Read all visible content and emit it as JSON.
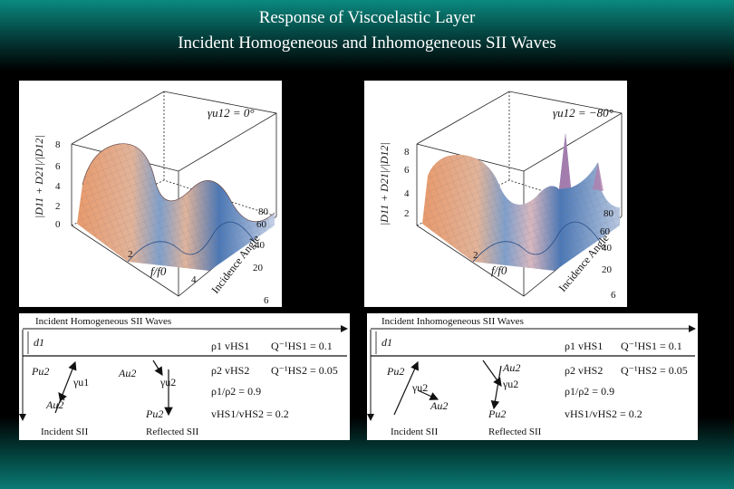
{
  "slide": {
    "title_line1": "Response of Viscoelastic Layer",
    "title_line2": "Incident Homogeneous and Inhomogeneous SII Waves"
  },
  "plots": [
    {
      "gamma_label": "γu12 = 0°",
      "ylabel": "|D11 + D21|/|D12|",
      "xlabel": "f/f0",
      "depth_label": "Incidence Angle",
      "z_ticks": [
        "0",
        "2",
        "4",
        "6",
        "8"
      ],
      "f_ticks": [
        "6",
        "4",
        "2"
      ],
      "angle_ticks": [
        "20",
        "40",
        "60",
        "80"
      ]
    },
    {
      "gamma_label": "γu12 = −80°",
      "ylabel": "|D11 + D21|/|D12|",
      "xlabel": "f/f0",
      "depth_label": "Incidence Angle",
      "z_ticks": [
        "2",
        "4",
        "6",
        "8"
      ],
      "f_ticks": [
        "6",
        "2"
      ],
      "angle_ticks": [
        "20",
        "40",
        "60",
        "80"
      ]
    }
  ],
  "diagrams": [
    {
      "heading": "Incident Homogeneous SII Waves",
      "layer_label": "d1",
      "rho1_vhs1": "ρ1 vHS1",
      "q1": "Q⁻¹HS1 = 0.1",
      "rho2_vhs2": "ρ2 vHS2",
      "q2": "Q⁻¹HS2 = 0.05",
      "rho_ratio": "ρ1/ρ2 = 0.9",
      "v_ratio": "vHS1/vHS2 = 0.2",
      "p_inc": "Pu2",
      "a_inc": "Au2",
      "gamma_inc": "γu1",
      "a_ref": "Au2",
      "gamma_ref": "γu2",
      "p_ref": "Pu2",
      "incident_label": "Incident SII",
      "reflected_label": "Reflected SII"
    },
    {
      "heading": "Incident Inhomogeneous SII Waves",
      "layer_label": "d1",
      "rho1_vhs1": "ρ1 vHS1",
      "q1": "Q⁻¹HS1 = 0.1",
      "rho2_vhs2": "ρ2 vHS2",
      "q2": "Q⁻¹HS2 = 0.05",
      "rho_ratio": "ρ1/ρ2 = 0.9",
      "v_ratio": "vHS1/vHS2 = 0.2",
      "p_inc": "Pu2",
      "a_inc": "Au2",
      "gamma_inc": "γu2",
      "a_ref": "Au2",
      "gamma_ref": "γu2",
      "p_ref": "Pu2",
      "incident_label": "Incident SII",
      "reflected_label": "Reflected SII"
    }
  ],
  "colors": {
    "surface_peak": "#e8a57c",
    "surface_mid": "#c8b8c8",
    "surface_valley": "#3d6fb2",
    "slide_gradient": "#0b8a80"
  }
}
